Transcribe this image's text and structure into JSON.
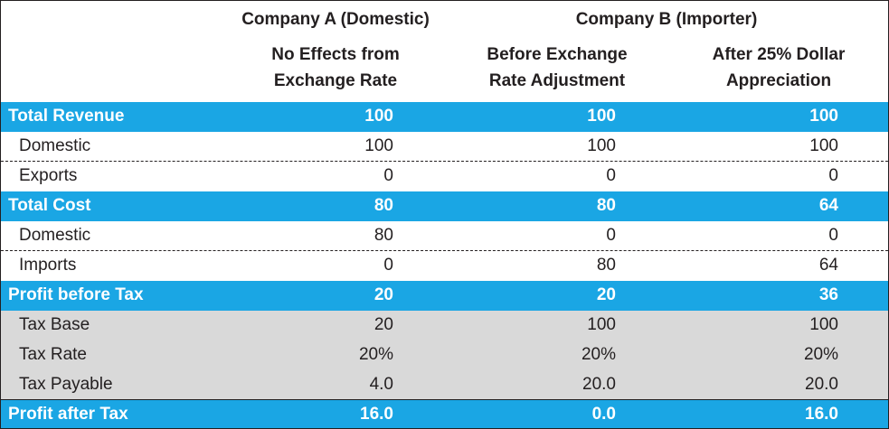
{
  "header": {
    "company_a": "Company A (Domestic)",
    "company_b": "Company B (Importer)",
    "col1_line1": "No Effects from",
    "col1_line2": "Exchange Rate",
    "col2_line1": "Before Exchange",
    "col2_line2": "Rate Adjustment",
    "col3_line1": "After 25% Dollar",
    "col3_line2": "Appreciation"
  },
  "rows": [
    {
      "label": "Total Revenue",
      "values": [
        "100",
        "100",
        "100"
      ]
    },
    {
      "label": "Domestic",
      "values": [
        "100",
        "100",
        "100"
      ]
    },
    {
      "label": "Exports",
      "values": [
        "0",
        "0",
        "0"
      ]
    },
    {
      "label": "Total Cost",
      "values": [
        "80",
        "80",
        "64"
      ]
    },
    {
      "label": "Domestic",
      "values": [
        "80",
        "0",
        "0"
      ]
    },
    {
      "label": "Imports",
      "values": [
        "0",
        "80",
        "64"
      ]
    },
    {
      "label": "Profit before Tax",
      "values": [
        "20",
        "20",
        "36"
      ]
    },
    {
      "label": "Tax Base",
      "values": [
        "20",
        "100",
        "100"
      ]
    },
    {
      "label": "Tax Rate",
      "values": [
        "20%",
        "20%",
        "20%"
      ]
    },
    {
      "label": "Tax Payable",
      "values": [
        "4.0",
        "20.0",
        "20.0"
      ]
    },
    {
      "label": "Profit after Tax",
      "values": [
        "16.0",
        "0.0",
        "16.0"
      ]
    }
  ],
  "colors": {
    "highlight_blue": "#1aa6e4",
    "tax_gray": "#d9d9d9",
    "text": "#231f20"
  }
}
